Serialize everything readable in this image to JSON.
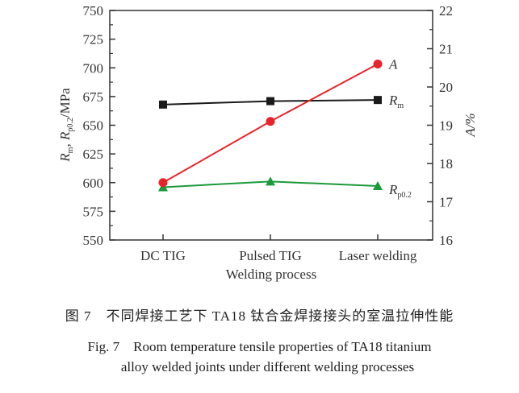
{
  "chart_data": {
    "type": "line",
    "categories": [
      "DC TIG",
      "Pulsed TIG",
      "Laser welding"
    ],
    "xlabel": "Welding process",
    "ylabel_left": "Rm, Rp0.2/MPa",
    "ylabel_right": "A/%",
    "ylim_left": [
      550,
      750
    ],
    "yticks_left": [
      550,
      575,
      600,
      625,
      650,
      675,
      700,
      725,
      750
    ],
    "ylim_right": [
      16,
      22
    ],
    "yticks_right": [
      16,
      17,
      18,
      19,
      20,
      21,
      22
    ],
    "grid": false,
    "series": [
      {
        "name": "Rm",
        "axis": "left",
        "values": [
          668,
          671,
          672
        ],
        "color": "#1a1a1a",
        "marker": "square"
      },
      {
        "name": "Rp0.2",
        "axis": "left",
        "values": [
          596,
          601,
          597
        ],
        "color": "#1a9a3a",
        "marker": "triangle"
      },
      {
        "name": "A",
        "axis": "right",
        "values": [
          17.5,
          19.1,
          20.6
        ],
        "color": "#e8242a",
        "marker": "circle"
      }
    ]
  },
  "caption": {
    "cn": "图 7　不同焊接工艺下 TA18 钛合金焊接接头的室温拉伸性能",
    "en1": "Fig. 7　Room temperature tensile properties of TA18 titanium",
    "en2": "alloy welded joints under different welding processes"
  }
}
